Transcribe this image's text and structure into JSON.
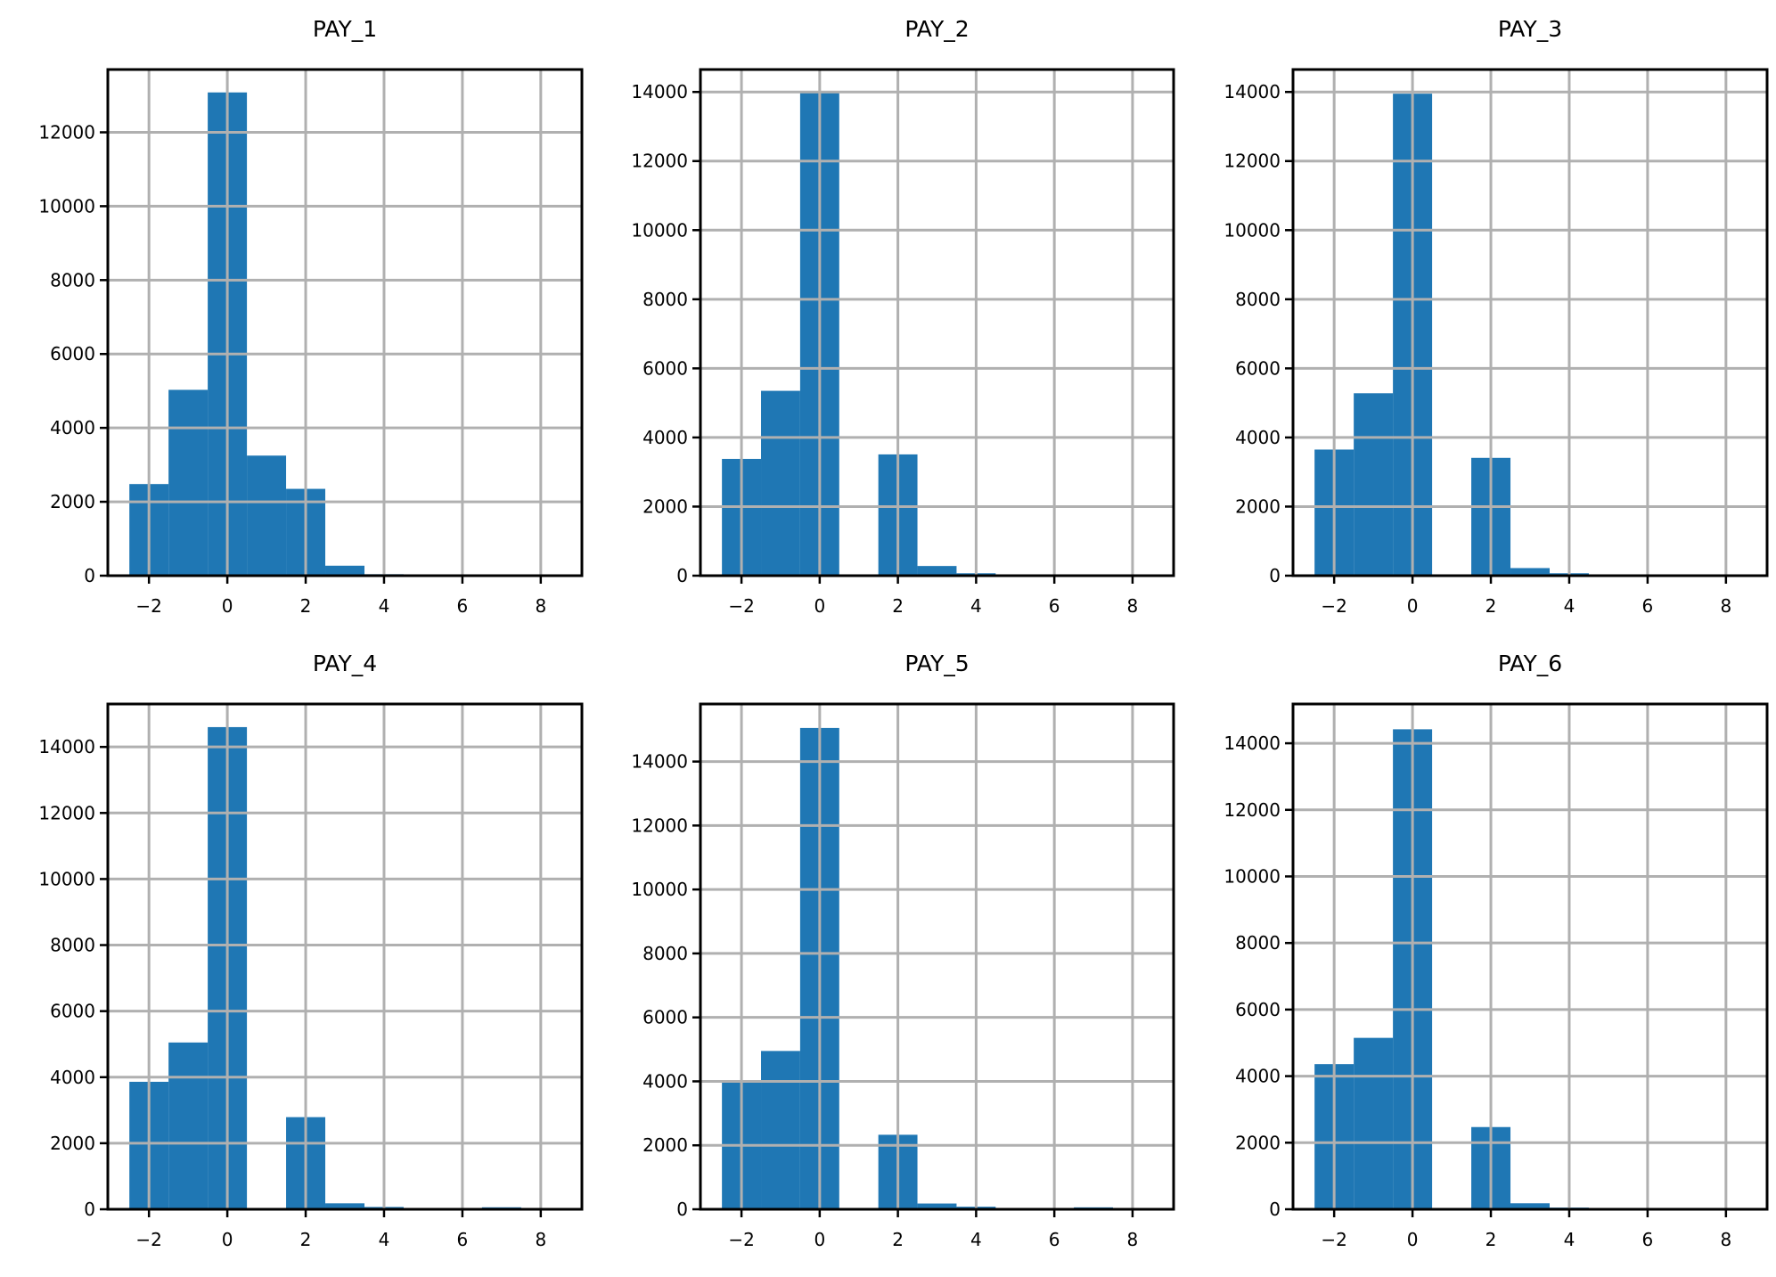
{
  "chart_data": [
    {
      "type": "bar",
      "title": "PAY_1",
      "bins": [
        [
          -2.5,
          -1.5
        ],
        [
          -1.5,
          -0.5
        ],
        [
          -0.5,
          0.5
        ],
        [
          0.5,
          1.5
        ],
        [
          1.5,
          2.5
        ],
        [
          2.5,
          3.5
        ],
        [
          3.5,
          4.5
        ],
        [
          4.5,
          5.5
        ],
        [
          5.5,
          6.5
        ],
        [
          6.5,
          7.5
        ],
        [
          7.5,
          8.5
        ]
      ],
      "values": [
        2480,
        5030,
        13080,
        3250,
        2350,
        270,
        40,
        15,
        10,
        10,
        10
      ],
      "xlim": [
        -3.05,
        9.05
      ],
      "ylim": [
        0,
        13700
      ],
      "xticks": [
        -2,
        0,
        2,
        4,
        6,
        8
      ],
      "xtick_labels": [
        "−2",
        "0",
        "2",
        "4",
        "6",
        "8"
      ],
      "yticks": [
        0,
        2000,
        4000,
        6000,
        8000,
        10000,
        12000
      ],
      "ytick_labels": [
        "0",
        "2000",
        "4000",
        "6000",
        "8000",
        "10000",
        "12000"
      ],
      "grid": true,
      "color": "#1f77b4"
    },
    {
      "type": "bar",
      "title": "PAY_2",
      "bins": [
        [
          -2.5,
          -1.5
        ],
        [
          -1.5,
          -0.5
        ],
        [
          -0.5,
          0.5
        ],
        [
          0.5,
          1.5
        ],
        [
          1.5,
          2.5
        ],
        [
          2.5,
          3.5
        ],
        [
          3.5,
          4.5
        ],
        [
          4.5,
          5.5
        ],
        [
          5.5,
          6.5
        ],
        [
          6.5,
          7.5
        ],
        [
          7.5,
          8.5
        ]
      ],
      "values": [
        3380,
        5350,
        13980,
        30,
        3510,
        280,
        70,
        20,
        10,
        10,
        10
      ],
      "xlim": [
        -3.05,
        9.05
      ],
      "ylim": [
        0,
        14650
      ],
      "xticks": [
        -2,
        0,
        2,
        4,
        6,
        8
      ],
      "xtick_labels": [
        "−2",
        "0",
        "2",
        "4",
        "6",
        "8"
      ],
      "yticks": [
        0,
        2000,
        4000,
        6000,
        8000,
        10000,
        12000,
        14000
      ],
      "ytick_labels": [
        "0",
        "2000",
        "4000",
        "6000",
        "8000",
        "10000",
        "12000",
        "14000"
      ],
      "grid": true,
      "color": "#1f77b4"
    },
    {
      "type": "bar",
      "title": "PAY_3",
      "bins": [
        [
          -2.5,
          -1.5
        ],
        [
          -1.5,
          -0.5
        ],
        [
          -0.5,
          0.5
        ],
        [
          0.5,
          1.5
        ],
        [
          1.5,
          2.5
        ],
        [
          2.5,
          3.5
        ],
        [
          3.5,
          4.5
        ],
        [
          4.5,
          5.5
        ],
        [
          5.5,
          6.5
        ],
        [
          6.5,
          7.5
        ],
        [
          7.5,
          8.5
        ]
      ],
      "values": [
        3650,
        5280,
        13950,
        10,
        3410,
        220,
        70,
        20,
        20,
        20,
        10
      ],
      "xlim": [
        -3.05,
        9.05
      ],
      "ylim": [
        0,
        14650
      ],
      "xticks": [
        -2,
        0,
        2,
        4,
        6,
        8
      ],
      "xtick_labels": [
        "−2",
        "0",
        "2",
        "4",
        "6",
        "8"
      ],
      "yticks": [
        0,
        2000,
        4000,
        6000,
        8000,
        10000,
        12000,
        14000
      ],
      "ytick_labels": [
        "0",
        "2000",
        "4000",
        "6000",
        "8000",
        "10000",
        "12000",
        "14000"
      ],
      "grid": true,
      "color": "#1f77b4"
    },
    {
      "type": "bar",
      "title": "PAY_4",
      "bins": [
        [
          -2.5,
          -1.5
        ],
        [
          -1.5,
          -0.5
        ],
        [
          -0.5,
          0.5
        ],
        [
          0.5,
          1.5
        ],
        [
          1.5,
          2.5
        ],
        [
          2.5,
          3.5
        ],
        [
          3.5,
          4.5
        ],
        [
          4.5,
          5.5
        ],
        [
          5.5,
          6.5
        ],
        [
          6.5,
          7.5
        ],
        [
          7.5,
          8.5
        ]
      ],
      "values": [
        3860,
        5050,
        14600,
        5,
        2790,
        180,
        70,
        30,
        10,
        60,
        5
      ],
      "xlim": [
        -3.05,
        9.05
      ],
      "ylim": [
        0,
        15300
      ],
      "xticks": [
        -2,
        0,
        2,
        4,
        6,
        8
      ],
      "xtick_labels": [
        "−2",
        "0",
        "2",
        "4",
        "6",
        "8"
      ],
      "yticks": [
        0,
        2000,
        4000,
        6000,
        8000,
        10000,
        12000,
        14000
      ],
      "ytick_labels": [
        "0",
        "2000",
        "4000",
        "6000",
        "8000",
        "10000",
        "12000",
        "14000"
      ],
      "grid": true,
      "color": "#1f77b4"
    },
    {
      "type": "bar",
      "title": "PAY_5",
      "bins": [
        [
          -2.5,
          -1.5
        ],
        [
          -1.5,
          -0.5
        ],
        [
          -0.5,
          0.5
        ],
        [
          0.5,
          1.5
        ],
        [
          1.5,
          2.5
        ],
        [
          2.5,
          3.5
        ],
        [
          3.5,
          4.5
        ],
        [
          4.5,
          5.5
        ],
        [
          5.5,
          6.5
        ],
        [
          6.5,
          7.5
        ],
        [
          7.5,
          8.5
        ]
      ],
      "values": [
        3980,
        4950,
        15050,
        0,
        2330,
        180,
        80,
        20,
        5,
        60,
        5
      ],
      "xlim": [
        -3.05,
        9.05
      ],
      "ylim": [
        0,
        15800
      ],
      "xticks": [
        -2,
        0,
        2,
        4,
        6,
        8
      ],
      "xtick_labels": [
        "−2",
        "0",
        "2",
        "4",
        "6",
        "8"
      ],
      "yticks": [
        0,
        2000,
        4000,
        6000,
        8000,
        10000,
        12000,
        14000
      ],
      "ytick_labels": [
        "0",
        "2000",
        "4000",
        "6000",
        "8000",
        "10000",
        "12000",
        "14000"
      ],
      "grid": true,
      "color": "#1f77b4"
    },
    {
      "type": "bar",
      "title": "PAY_6",
      "bins": [
        [
          -2.5,
          -1.5
        ],
        [
          -1.5,
          -0.5
        ],
        [
          -0.5,
          0.5
        ],
        [
          0.5,
          1.5
        ],
        [
          1.5,
          2.5
        ],
        [
          2.5,
          3.5
        ],
        [
          3.5,
          4.5
        ],
        [
          4.5,
          5.5
        ],
        [
          5.5,
          6.5
        ],
        [
          6.5,
          7.5
        ],
        [
          7.5,
          8.5
        ]
      ],
      "values": [
        4360,
        5150,
        14420,
        0,
        2470,
        180,
        50,
        10,
        20,
        40,
        5
      ],
      "xlim": [
        -3.05,
        9.05
      ],
      "ylim": [
        0,
        15180
      ],
      "xticks": [
        -2,
        0,
        2,
        4,
        6,
        8
      ],
      "xtick_labels": [
        "−2",
        "0",
        "2",
        "4",
        "6",
        "8"
      ],
      "yticks": [
        0,
        2000,
        4000,
        6000,
        8000,
        10000,
        12000,
        14000
      ],
      "ytick_labels": [
        "0",
        "2000",
        "4000",
        "6000",
        "8000",
        "10000",
        "12000",
        "14000"
      ],
      "grid": true,
      "color": "#1f77b4"
    }
  ]
}
